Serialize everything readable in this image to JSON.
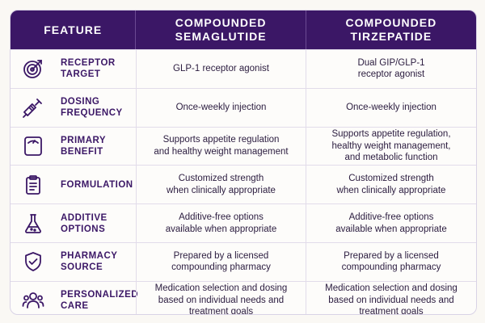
{
  "header": {
    "feature": "Feature",
    "col1": "Compounded\nSemaglutide",
    "col2": "Compounded\nTirzepatide"
  },
  "colors": {
    "header_bg": "#3b1766",
    "label": "#3b1766",
    "text": "#2b1c3f"
  },
  "rows": [
    {
      "icon": "target-icon",
      "label": "Receptor\nTarget",
      "sema": "GLP-1 receptor agonist",
      "tirz": "Dual GIP/GLP-1\nreceptor agonist"
    },
    {
      "icon": "syringe-icon",
      "label": "Dosing\nFrequency",
      "sema": "Once-weekly injection",
      "tirz": "Once-weekly injection"
    },
    {
      "icon": "scale-icon",
      "label": "Primary\nBenefit",
      "sema": "Supports appetite regulation\nand healthy weight management",
      "tirz": "Supports appetite regulation,\nhealthy weight management,\nand metabolic function"
    },
    {
      "icon": "clipboard-icon",
      "label": "Formulation",
      "sema": "Customized strength\nwhen clinically appropriate",
      "tirz": "Customized strength\nwhen clinically appropriate"
    },
    {
      "icon": "flask-icon",
      "label": "Additive\nOptions",
      "sema": "Additive-free options\navailable when appropriate",
      "tirz": "Additive-free options\navailable when appropriate"
    },
    {
      "icon": "shield-check-icon",
      "label": "Pharmacy\nSource",
      "sema": "Prepared by a licensed\ncompounding pharmacy",
      "tirz": "Prepared by a licensed\ncompounding pharmacy"
    },
    {
      "icon": "people-icon",
      "label": "Personalized\nCare",
      "sema": "Medication selection and dosing\nbased on individual needs and\ntreatment goals",
      "tirz": "Medication selection and dosing\nbased on individual needs and\ntreatment goals"
    }
  ]
}
